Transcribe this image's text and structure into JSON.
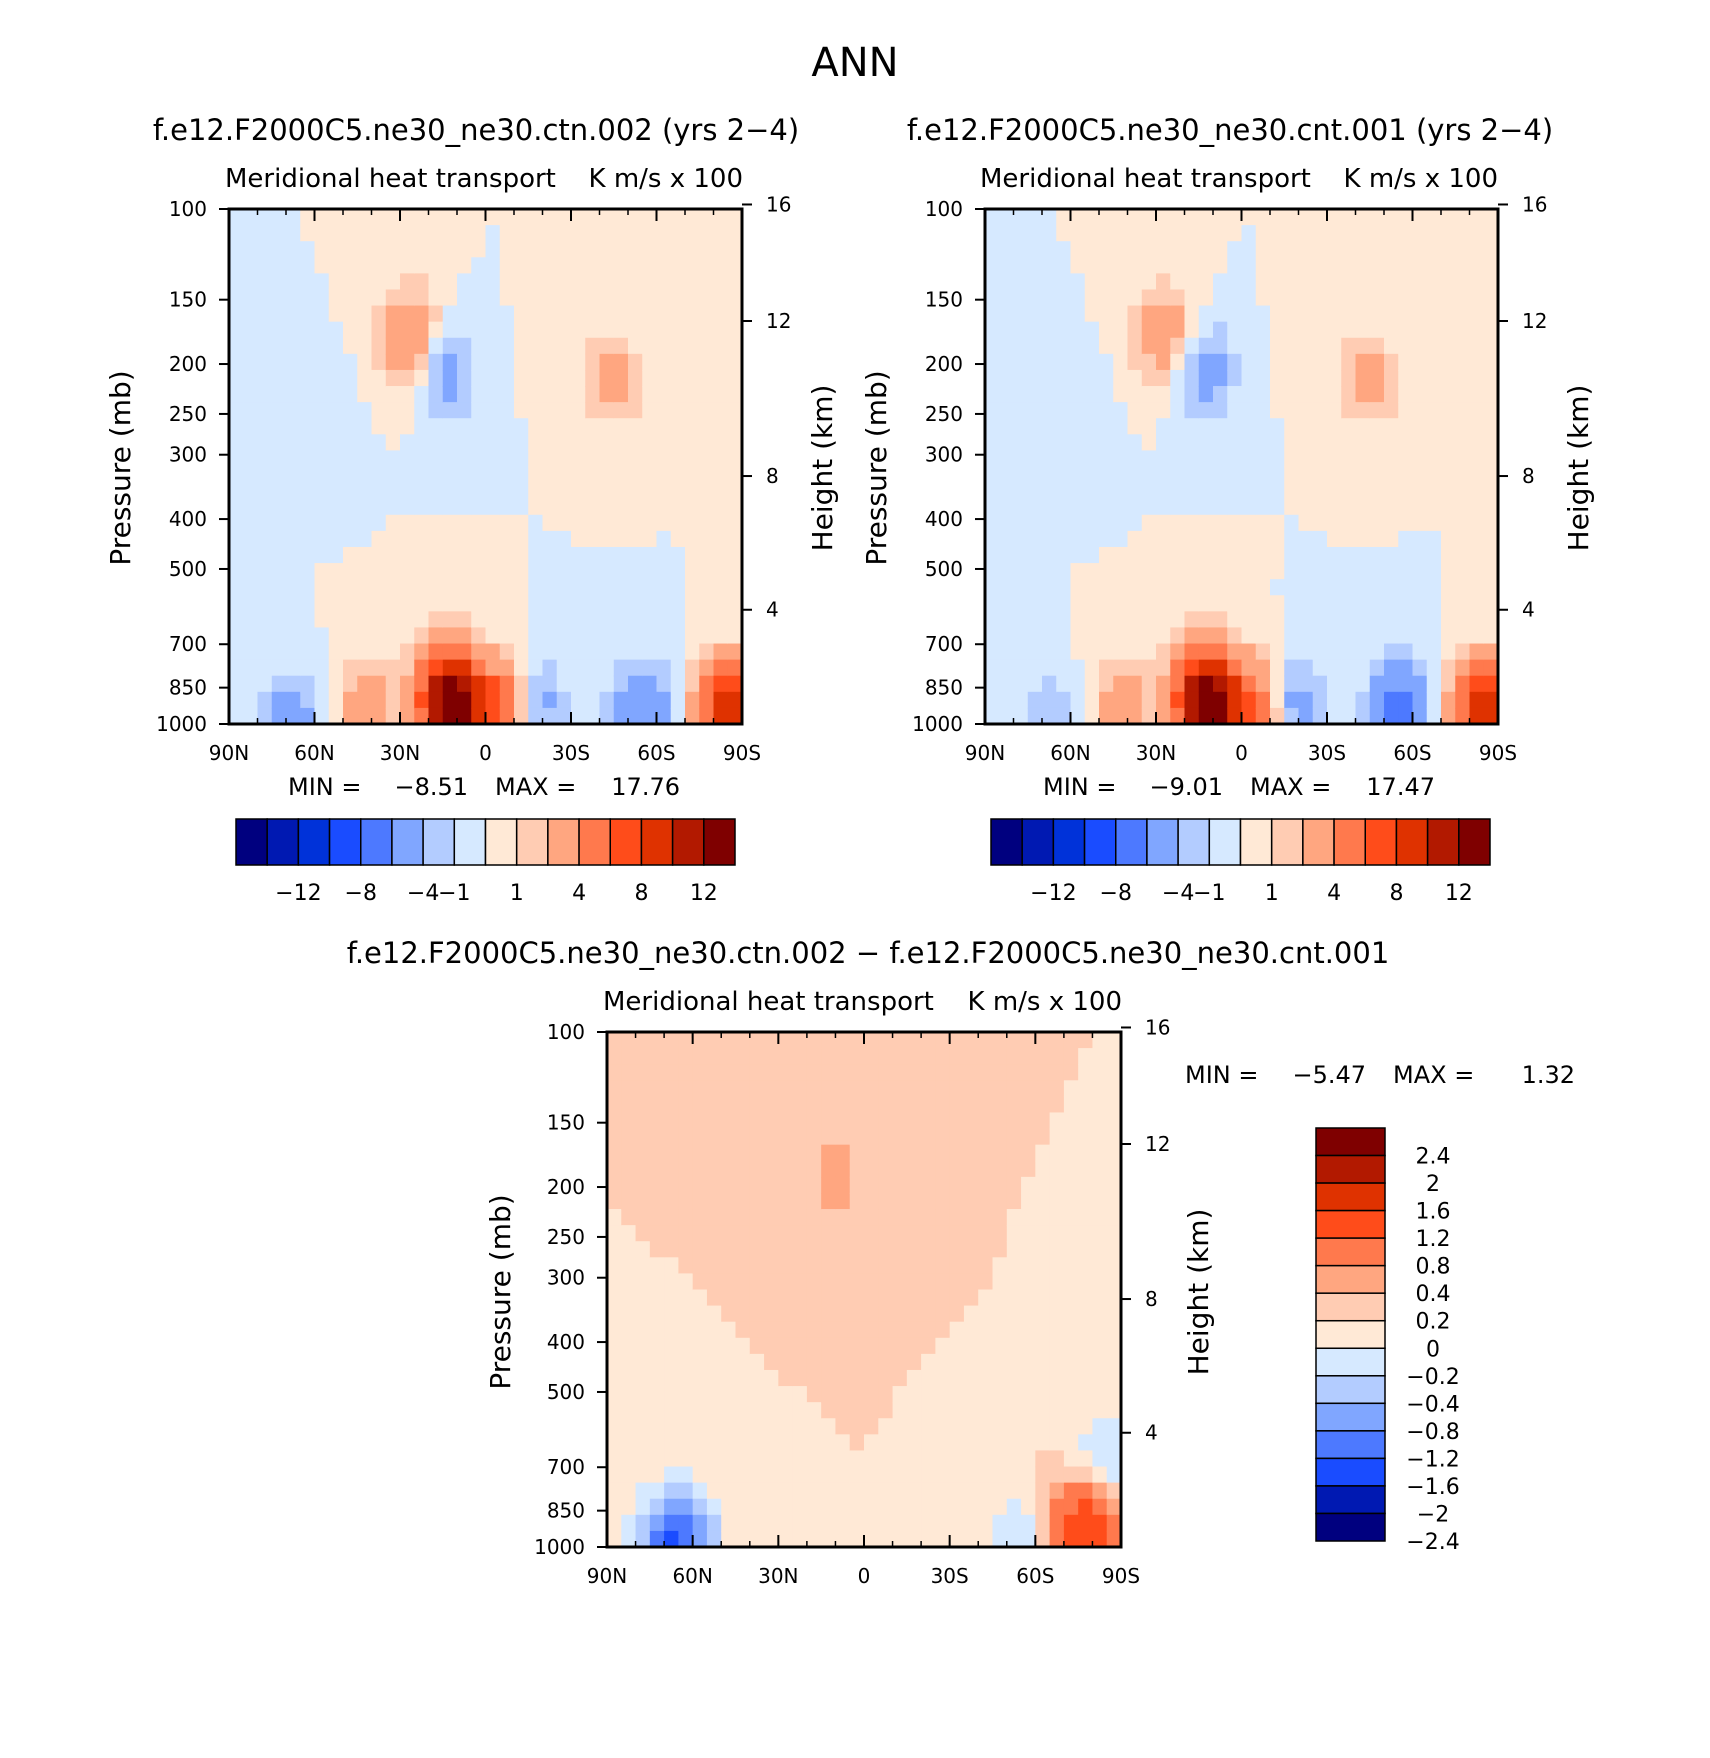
{
  "figure_title": "ANN",
  "colors": {
    "absolute_scale": [
      "#00007f",
      "#0019b2",
      "#0032d9",
      "#1a4cff",
      "#4d79ff",
      "#80a6ff",
      "#b3ccff",
      "#d6e9ff",
      "#ffe9d6",
      "#ffccb3",
      "#ffa680",
      "#ff794d",
      "#ff4c1a",
      "#df3200",
      "#b21900",
      "#7f0000"
    ],
    "difference_scale": [
      "#00007f",
      "#0019b2",
      "#1a4cff",
      "#4d79ff",
      "#80a6ff",
      "#b3ccff",
      "#d6e9ff",
      "#ffe9d6",
      "#ffccb3",
      "#ffa680",
      "#ff794d",
      "#ff4c1a",
      "#df3200",
      "#b21900",
      "#7f0000"
    ]
  },
  "chart_data": [
    {
      "type": "heatmap",
      "id": "panel_a",
      "title": "f.e12.F2000C5.ne30_ne30.ctn.002 (yrs 2−4)",
      "subtitle_left": "Meridional heat transport",
      "subtitle_right": "K m/s x 100",
      "ylabel": "Pressure (mb)",
      "y2label": "Height (km)",
      "x_ticks": [
        "90N",
        "60N",
        "30N",
        "0",
        "30S",
        "60S",
        "90S"
      ],
      "x_tick_values": [
        90,
        60,
        30,
        0,
        -30,
        -60,
        -90
      ],
      "xlim": [
        90,
        -90
      ],
      "y_ticks": [
        "100",
        "150",
        "200",
        "250",
        "300",
        "400",
        "500",
        "700",
        "850",
        "1000"
      ],
      "y_tick_values": [
        100,
        150,
        200,
        250,
        300,
        400,
        500,
        700,
        850,
        1000
      ],
      "ylim": [
        1000,
        100
      ],
      "y2_ticks": [
        "16",
        "12",
        "8",
        "4"
      ],
      "y2_tick_pressures": [
        98,
        165,
        330,
        600
      ],
      "min_label": "MIN =",
      "min_value": "−8.51",
      "max_label": "MAX =",
      "max_value": "17.76",
      "colorbar": {
        "orientation": "horizontal",
        "labels": [
          "−12",
          "−8",
          "−4",
          "−1",
          "1",
          "4",
          "8",
          "12"
        ],
        "levels": [
          -14,
          -12,
          -10,
          -8,
          -6,
          -4,
          -2,
          -1,
          0,
          1,
          2,
          4,
          6,
          8,
          10,
          12,
          14
        ]
      },
      "features": [
        {
          "lat": 12,
          "p": 920,
          "value": 14
        },
        {
          "lat": -7,
          "p": 940,
          "value": 8
        },
        {
          "lat": 15,
          "p": 730,
          "value": 1.5
        },
        {
          "lat": -15,
          "p": 930,
          "value": -5
        },
        {
          "lat": -55,
          "p": 940,
          "value": -4
        },
        {
          "lat": 42,
          "p": 920,
          "value": 3
        },
        {
          "lat": 68,
          "p": 980,
          "value": -3
        },
        {
          "lat": 14,
          "p": 205,
          "value": -3
        },
        {
          "lat": -45,
          "p": 215,
          "value": 2.5
        },
        {
          "lat": -28,
          "p": 175,
          "value": 0.5
        },
        {
          "lat": 27,
          "p": 185,
          "value": 2
        },
        {
          "lat": 25,
          "p": 170,
          "value": 2
        },
        {
          "lat": 55,
          "p": 250,
          "value": -0.5
        },
        {
          "lat": -85,
          "p": 930,
          "value": 9
        }
      ]
    },
    {
      "type": "heatmap",
      "id": "panel_b",
      "title": "f.e12.F2000C5.ne30_ne30.cnt.001 (yrs 2−4)",
      "subtitle_left": "Meridional heat transport",
      "subtitle_right": "K m/s x 100",
      "ylabel": "Pressure (mb)",
      "y2label": "Height (km)",
      "x_ticks": [
        "90N",
        "60N",
        "30N",
        "0",
        "30S",
        "60S",
        "90S"
      ],
      "x_tick_values": [
        90,
        60,
        30,
        0,
        -30,
        -60,
        -90
      ],
      "xlim": [
        90,
        -90
      ],
      "y_ticks": [
        "100",
        "150",
        "200",
        "250",
        "300",
        "400",
        "500",
        "700",
        "850",
        "1000"
      ],
      "y_tick_values": [
        100,
        150,
        200,
        250,
        300,
        400,
        500,
        700,
        850,
        1000
      ],
      "ylim": [
        1000,
        100
      ],
      "y2_ticks": [
        "16",
        "12",
        "8",
        "4"
      ],
      "y2_tick_pressures": [
        98,
        165,
        330,
        600
      ],
      "min_label": "MIN =",
      "min_value": "−9.01",
      "max_label": "MAX =",
      "max_value": "17.47",
      "colorbar": {
        "orientation": "horizontal",
        "labels": [
          "−12",
          "−8",
          "−4",
          "−1",
          "1",
          "4",
          "8",
          "12"
        ],
        "levels": [
          -14,
          -12,
          -10,
          -8,
          -6,
          -4,
          -2,
          -1,
          0,
          1,
          2,
          4,
          6,
          8,
          10,
          12,
          14
        ]
      },
      "features": [
        {
          "lat": 12,
          "p": 920,
          "value": 14
        },
        {
          "lat": -7,
          "p": 940,
          "value": 8
        },
        {
          "lat": 15,
          "p": 730,
          "value": 1.5
        },
        {
          "lat": -15,
          "p": 930,
          "value": -5.5
        },
        {
          "lat": -55,
          "p": 940,
          "value": -4.5
        },
        {
          "lat": 42,
          "p": 920,
          "value": 3
        },
        {
          "lat": 68,
          "p": 980,
          "value": -2
        },
        {
          "lat": 14,
          "p": 205,
          "value": -3.5
        },
        {
          "lat": -45,
          "p": 215,
          "value": 2.5
        },
        {
          "lat": -28,
          "p": 175,
          "value": 0.5
        },
        {
          "lat": 27,
          "p": 185,
          "value": 2
        },
        {
          "lat": 25,
          "p": 170,
          "value": 2
        },
        {
          "lat": 55,
          "p": 250,
          "value": -0.5
        },
        {
          "lat": -85,
          "p": 930,
          "value": 9
        }
      ]
    },
    {
      "type": "heatmap",
      "id": "panel_diff",
      "title": "f.e12.F2000C5.ne30_ne30.ctn.002 − f.e12.F2000C5.ne30_ne30.cnt.001",
      "subtitle_left": "Meridional heat transport",
      "subtitle_right": "K m/s x 100",
      "ylabel": "Pressure (mb)",
      "y2label": "Height (km)",
      "x_ticks": [
        "90N",
        "60N",
        "30N",
        "0",
        "30S",
        "60S",
        "90S"
      ],
      "x_tick_values": [
        90,
        60,
        30,
        0,
        -30,
        -60,
        -90
      ],
      "xlim": [
        90,
        -90
      ],
      "y_ticks": [
        "100",
        "150",
        "200",
        "250",
        "300",
        "400",
        "500",
        "700",
        "850",
        "1000"
      ],
      "y_tick_values": [
        100,
        150,
        200,
        250,
        300,
        400,
        500,
        700,
        850,
        1000
      ],
      "ylim": [
        1000,
        100
      ],
      "y2_ticks": [
        "16",
        "12",
        "8",
        "4"
      ],
      "y2_tick_pressures": [
        98,
        165,
        330,
        600
      ],
      "min_label": "MIN =",
      "min_value": "−5.47",
      "max_label": "MAX =",
      "max_value": "1.32",
      "colorbar": {
        "orientation": "vertical",
        "labels": [
          "2.4",
          "2",
          "1.6",
          "1.2",
          "0.8",
          "0.4",
          "0.2",
          "0",
          "−0.2",
          "−0.4",
          "−0.8",
          "−1.2",
          "−1.6",
          "−2",
          "−2.4"
        ],
        "levels": [
          -2.8,
          -2.4,
          -2,
          -1.6,
          -1.2,
          -0.8,
          -0.4,
          -0.2,
          0,
          0.2,
          0.4,
          0.8,
          1.2,
          1.6,
          2,
          2.4,
          2.8
        ]
      },
      "features": [
        {
          "lat": -80,
          "p": 920,
          "value": 0.9
        },
        {
          "lat": -72,
          "p": 960,
          "value": 0.5
        },
        {
          "lat": -85,
          "p": 680,
          "value": -0.5
        },
        {
          "lat": 68,
          "p": 990,
          "value": -1.4
        },
        {
          "lat": 60,
          "p": 990,
          "value": -0.5
        },
        {
          "lat": -55,
          "p": 980,
          "value": -0.4
        },
        {
          "lat": 10,
          "p": 190,
          "value": 0.3
        }
      ]
    }
  ]
}
